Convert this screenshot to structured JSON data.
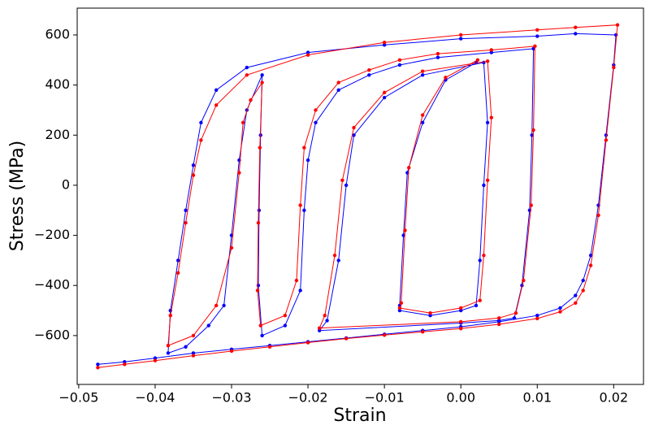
{
  "chart_data": {
    "type": "line",
    "xlabel": "Strain",
    "ylabel": "Stress (MPa)",
    "xlim": [
      -0.0502,
      0.0239
    ],
    "ylim": [
      -795,
      707
    ],
    "xticks": [
      {
        "value": -0.05,
        "label": "−0.05"
      },
      {
        "value": -0.04,
        "label": "−0.04"
      },
      {
        "value": -0.03,
        "label": "−0.03"
      },
      {
        "value": -0.02,
        "label": "−0.02"
      },
      {
        "value": -0.01,
        "label": "−0.01"
      },
      {
        "value": 0,
        "label": "0.00"
      },
      0.01,
      0.02
    ],
    "yticks": [
      {
        "value": -600,
        "label": "−600"
      },
      {
        "value": -400,
        "label": "−400"
      },
      {
        "value": -200,
        "label": "−200"
      },
      0,
      200,
      400,
      600
    ],
    "series": [
      {
        "color": "#0000ff",
        "x": [
          -0.0475,
          -0.044,
          -0.04,
          -0.035,
          -0.03,
          -0.025,
          -0.02,
          -0.015,
          -0.01,
          -0.005,
          0,
          0.005,
          0.01,
          0.013,
          0.015,
          0.016,
          0.017,
          0.018,
          0.019,
          0.02,
          0.0203,
          0.015,
          0.01,
          0,
          -0.01,
          -0.02,
          -0.028,
          -0.032,
          -0.034,
          -0.035,
          -0.036,
          -0.037,
          -0.038,
          -0.0383,
          -0.036,
          -0.033,
          -0.031,
          -0.03,
          -0.029,
          -0.028,
          -0.026,
          -0.0262,
          -0.0264,
          -0.0265,
          -0.026,
          -0.023,
          -0.021,
          -0.0205,
          -0.02,
          -0.019,
          -0.016,
          -0.012,
          -0.008,
          -0.003,
          0.004,
          0.0095,
          0.0093,
          0.009,
          0.008,
          0.007,
          0.005,
          0,
          -0.0185,
          -0.0175,
          -0.016,
          -0.015,
          -0.014,
          -0.01,
          -0.005,
          0.003,
          0.0035,
          0.003,
          0.0025,
          0.002,
          0,
          -0.004,
          -0.008,
          -0.008,
          -0.0075,
          -0.007,
          -0.005,
          -0.002,
          0.002
        ],
        "values": [
          -715,
          -705,
          -690,
          -670,
          -655,
          -640,
          -625,
          -610,
          -595,
          -580,
          -565,
          -545,
          -520,
          -490,
          -440,
          -380,
          -280,
          -80,
          200,
          480,
          600,
          605,
          595,
          585,
          560,
          530,
          470,
          380,
          250,
          80,
          -100,
          -300,
          -500,
          -670,
          -645,
          -560,
          -480,
          -200,
          100,
          300,
          440,
          200,
          -100,
          -400,
          -600,
          -560,
          -420,
          -100,
          100,
          250,
          380,
          440,
          480,
          510,
          530,
          545,
          200,
          -100,
          -400,
          -530,
          -540,
          -550,
          -580,
          -540,
          -300,
          0,
          200,
          350,
          440,
          490,
          250,
          0,
          -300,
          -480,
          -500,
          -520,
          -500,
          -480,
          -200,
          50,
          250,
          420,
          490
        ]
      },
      {
        "color": "#ff0000",
        "x": [
          -0.0475,
          -0.044,
          -0.04,
          -0.035,
          -0.03,
          -0.025,
          -0.02,
          -0.015,
          -0.01,
          -0.005,
          0,
          0.005,
          0.01,
          0.013,
          0.015,
          0.016,
          0.017,
          0.018,
          0.019,
          0.02,
          0.0205,
          0.015,
          0.01,
          0,
          -0.01,
          -0.02,
          -0.028,
          -0.032,
          -0.034,
          -0.035,
          -0.036,
          -0.037,
          -0.038,
          -0.0383,
          -0.035,
          -0.032,
          -0.03,
          -0.029,
          -0.0285,
          -0.0275,
          -0.026,
          -0.0263,
          -0.0265,
          -0.0266,
          -0.0262,
          -0.023,
          -0.0215,
          -0.021,
          -0.0205,
          -0.019,
          -0.016,
          -0.012,
          -0.008,
          -0.003,
          0.004,
          0.0097,
          0.0095,
          0.0092,
          0.0082,
          0.0072,
          0.005,
          0,
          -0.0185,
          -0.0178,
          -0.0165,
          -0.0155,
          -0.014,
          -0.01,
          -0.005,
          0.0035,
          0.004,
          0.0035,
          0.003,
          0.0025,
          0,
          -0.004,
          -0.008,
          -0.0078,
          -0.0073,
          -0.0068,
          -0.005,
          -0.002,
          0.0022
        ],
        "values": [
          -728,
          -715,
          -700,
          -680,
          -662,
          -645,
          -628,
          -612,
          -598,
          -585,
          -572,
          -555,
          -532,
          -505,
          -470,
          -420,
          -320,
          -120,
          180,
          470,
          640,
          630,
          620,
          600,
          570,
          520,
          440,
          320,
          180,
          40,
          -150,
          -350,
          -520,
          -640,
          -600,
          -480,
          -250,
          50,
          250,
          340,
          410,
          150,
          -150,
          -420,
          -560,
          -520,
          -380,
          -80,
          150,
          300,
          410,
          460,
          500,
          525,
          540,
          555,
          220,
          -80,
          -380,
          -510,
          -530,
          -545,
          -570,
          -520,
          -280,
          20,
          230,
          370,
          455,
          495,
          270,
          20,
          -280,
          -460,
          -490,
          -510,
          -490,
          -470,
          -180,
          70,
          280,
          430,
          500
        ]
      }
    ]
  }
}
